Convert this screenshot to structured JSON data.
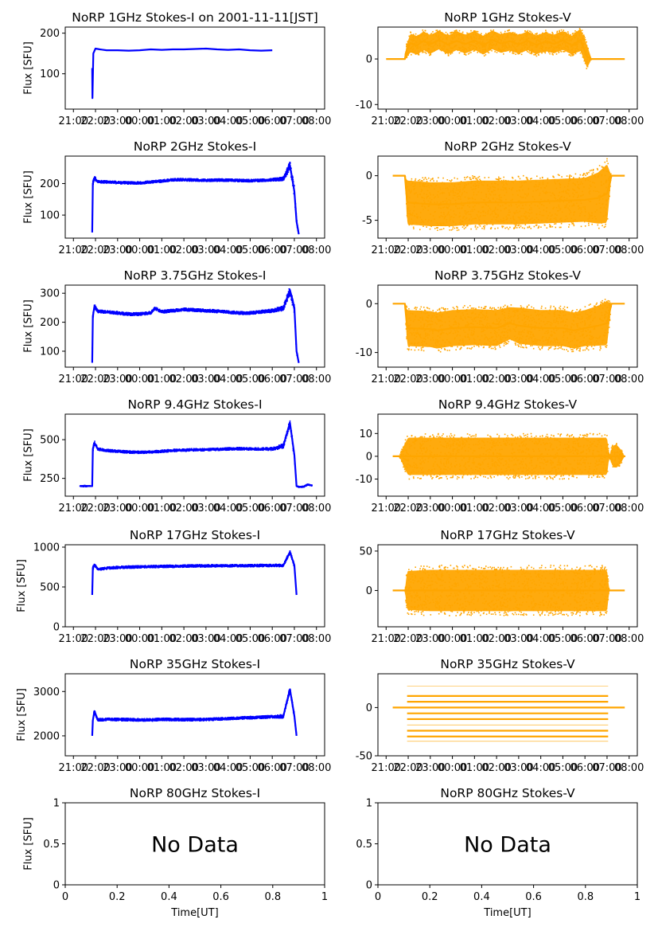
{
  "figure": {
    "xtick_labels": [
      "21:00",
      "22:00",
      "23:00",
      "00:00",
      "01:00",
      "02:00",
      "03:00",
      "04:00",
      "05:00",
      "06:00",
      "07:00",
      "08:00"
    ],
    "ylabel": "Flux [SFU]",
    "no_data_text": "No Data",
    "colors": {
      "stokes_i": "#0000ff",
      "stokes_v": "#ffa500"
    }
  },
  "chart_data": [
    {
      "type": "scatter",
      "title": "NoRP 1GHz Stokes-I on 2001-11-11[JST]",
      "ylabel": "Flux [SFU]",
      "yticks": [
        100,
        200
      ],
      "ylim": [
        13,
        215
      ],
      "series": [
        {
          "name": "Stokes-I",
          "color": "#0000ff",
          "x": [
            21.85,
            21.86,
            21.9,
            22.0,
            22.2,
            22.5,
            23.0,
            23.5,
            24.0,
            24.5,
            25.0,
            25.5,
            26.0,
            26.5,
            27.0,
            27.5,
            28.0,
            28.5,
            29.0,
            29.5,
            30.0
          ],
          "y": [
            114,
            40,
            150,
            162,
            160,
            158,
            158,
            157,
            158,
            160,
            159,
            160,
            160,
            161,
            162,
            160,
            159,
            160,
            158,
            157,
            158
          ]
        }
      ]
    },
    {
      "type": "scatter",
      "title": "NoRP 1GHz Stokes-V",
      "ylabel": "",
      "yticks": [
        0,
        -10
      ],
      "ylim": [
        -11,
        7
      ],
      "series": [
        {
          "name": "Stokes-V",
          "color": "#ffa500",
          "x": [
            21.0,
            21.85,
            21.9,
            22.1,
            22.4,
            22.7,
            23.0,
            23.4,
            23.8,
            24.2,
            24.6,
            25.0,
            25.4,
            25.8,
            26.2,
            26.6,
            27.0,
            27.4,
            27.8,
            28.2,
            28.6,
            29.0,
            29.4,
            29.8,
            30.1,
            30.3,
            31.8
          ],
          "y": [
            0,
            0,
            1.5,
            3.5,
            3.0,
            4.0,
            3.2,
            4.2,
            3.1,
            4.0,
            3.3,
            4.1,
            3.0,
            4.2,
            3.4,
            3.9,
            3.2,
            4.0,
            3.1,
            3.8,
            3.3,
            4.1,
            3.0,
            4.2,
            0.5,
            0,
            0
          ],
          "spread": [
            0,
            0,
            1.5,
            2.5,
            2.5,
            2.5,
            2.5,
            2.5,
            2.5,
            2.5,
            2.5,
            2.5,
            2.5,
            2.5,
            2.5,
            2.5,
            2.5,
            2.5,
            2.5,
            2.5,
            2.5,
            2.5,
            2.5,
            3.0,
            3.0,
            0,
            0
          ]
        }
      ]
    },
    {
      "type": "scatter",
      "title": "NoRP 2GHz Stokes-I",
      "ylabel": "Flux [SFU]",
      "yticks": [
        100,
        200
      ],
      "ylim": [
        27,
        287
      ],
      "series": [
        {
          "name": "Stokes-I",
          "color": "#0000ff",
          "x": [
            21.85,
            21.88,
            21.95,
            22.1,
            22.5,
            23.0,
            23.5,
            24.0,
            24.5,
            25.0,
            25.5,
            26.0,
            26.5,
            27.0,
            27.5,
            28.0,
            28.5,
            29.0,
            29.5,
            30.0,
            30.5,
            30.8,
            31.0,
            31.1,
            31.2
          ],
          "y": [
            45,
            200,
            218,
            206,
            205,
            203,
            202,
            202,
            205,
            208,
            212,
            212,
            211,
            210,
            211,
            211,
            210,
            209,
            210,
            212,
            215,
            258,
            175,
            80,
            40
          ],
          "spread": [
            0,
            10,
            8,
            4,
            4,
            4,
            4,
            4,
            4,
            4,
            4,
            4,
            4,
            4,
            4,
            4,
            4,
            4,
            4,
            4,
            6,
            15,
            20,
            10,
            0
          ]
        }
      ]
    },
    {
      "type": "scatter",
      "title": "NoRP 2GHz Stokes-V",
      "ylabel": "",
      "yticks": [
        0,
        -5
      ],
      "ylim": [
        -7,
        2.2
      ],
      "series": [
        {
          "name": "Stokes-V",
          "color": "#ffa500",
          "x": [
            21.3,
            21.85,
            21.95,
            23.0,
            24.0,
            25.0,
            26.0,
            27.0,
            28.0,
            29.0,
            30.0,
            30.6,
            31.0,
            31.2,
            31.8
          ],
          "y": [
            0,
            0,
            -3.0,
            -3.2,
            -3.2,
            -3.0,
            -3.0,
            -3.0,
            -2.9,
            -2.8,
            -2.7,
            -2.5,
            -2.0,
            0,
            0
          ],
          "spread": [
            0,
            0,
            3.0,
            3.0,
            3.0,
            3.0,
            3.0,
            3.0,
            3.0,
            3.0,
            3.0,
            3.5,
            4.0,
            0,
            0
          ]
        }
      ]
    },
    {
      "type": "scatter",
      "title": "NoRP 3.75GHz Stokes-I",
      "ylabel": "Flux [SFU]",
      "yticks": [
        100,
        200,
        300
      ],
      "ylim": [
        45,
        328
      ],
      "series": [
        {
          "name": "Stokes-I",
          "color": "#0000ff",
          "x": [
            21.85,
            21.88,
            21.95,
            22.1,
            22.5,
            23.0,
            23.5,
            24.0,
            24.5,
            24.7,
            25.0,
            25.5,
            26.0,
            26.5,
            27.0,
            27.5,
            28.0,
            28.5,
            29.0,
            29.5,
            30.0,
            30.5,
            30.8,
            31.0,
            31.1,
            31.2
          ],
          "y": [
            60,
            220,
            255,
            238,
            235,
            232,
            228,
            228,
            232,
            248,
            236,
            240,
            244,
            242,
            240,
            238,
            235,
            232,
            232,
            236,
            240,
            248,
            310,
            250,
            100,
            60
          ],
          "spread": [
            0,
            10,
            8,
            5,
            5,
            5,
            5,
            5,
            5,
            5,
            5,
            5,
            5,
            5,
            5,
            5,
            5,
            5,
            5,
            5,
            6,
            8,
            15,
            20,
            10,
            0
          ]
        }
      ]
    },
    {
      "type": "scatter",
      "title": "NoRP 3.75GHz Stokes-V",
      "ylabel": "",
      "yticks": [
        0,
        -10
      ],
      "ylim": [
        -13,
        3.8
      ],
      "series": [
        {
          "name": "Stokes-V",
          "color": "#ffa500",
          "x": [
            21.3,
            21.85,
            21.95,
            23.0,
            23.3,
            24.0,
            25.0,
            26.0,
            26.6,
            27.0,
            28.0,
            29.0,
            29.5,
            30.0,
            30.6,
            31.0,
            31.2,
            31.8
          ],
          "y": [
            0,
            0,
            -5.0,
            -5.2,
            -5.5,
            -5.0,
            -4.8,
            -5.0,
            -4.0,
            -4.5,
            -5.0,
            -5.0,
            -5.5,
            -5.0,
            -4.5,
            -4.0,
            0,
            0
          ],
          "spread": [
            0,
            0,
            4.5,
            4.5,
            4.5,
            4.5,
            4.5,
            4.5,
            4.0,
            4.5,
            4.5,
            4.5,
            4.5,
            4.5,
            5.0,
            5.5,
            0,
            0
          ]
        }
      ]
    },
    {
      "type": "scatter",
      "title": "NoRP 9.4GHz Stokes-I",
      "ylabel": "Flux [SFU]",
      "yticks": [
        250,
        500
      ],
      "ylim": [
        135,
        665
      ],
      "series": [
        {
          "name": "Stokes-I",
          "color": "#0000ff",
          "x": [
            21.3,
            21.5,
            21.6,
            21.85,
            21.88,
            21.95,
            22.1,
            22.5,
            23.0,
            23.5,
            24.0,
            24.5,
            25.0,
            25.5,
            26.0,
            26.5,
            27.0,
            27.5,
            28.0,
            28.5,
            29.0,
            29.5,
            30.0,
            30.5,
            30.8,
            31.0,
            31.1,
            31.2,
            31.4,
            31.6,
            31.8
          ],
          "y": [
            200,
            200,
            200,
            200,
            440,
            480,
            440,
            430,
            425,
            420,
            418,
            420,
            425,
            430,
            432,
            435,
            435,
            438,
            440,
            442,
            440,
            440,
            440,
            460,
            610,
            400,
            200,
            195,
            195,
            210,
            205
          ],
          "spread": [
            4,
            4,
            4,
            0,
            20,
            15,
            8,
            8,
            8,
            8,
            8,
            8,
            8,
            8,
            8,
            8,
            8,
            8,
            8,
            8,
            8,
            8,
            10,
            15,
            20,
            30,
            0,
            4,
            4,
            4,
            4
          ]
        }
      ]
    },
    {
      "type": "scatter",
      "title": "NoRP 9.4GHz Stokes-V",
      "ylabel": "",
      "yticks": [
        10,
        0,
        -10
      ],
      "ylim": [
        -17.5,
        18.5
      ],
      "series": [
        {
          "name": "Stokes-V",
          "color": "#ffa500",
          "x": [
            21.3,
            21.6,
            21.85,
            22.0,
            23.0,
            24.0,
            25.0,
            26.0,
            27.0,
            28.0,
            29.0,
            30.0,
            30.5,
            31.0,
            31.1,
            31.2,
            31.3,
            31.45,
            31.6,
            31.8
          ],
          "y": [
            0,
            0,
            0,
            0,
            0,
            0,
            0,
            0,
            0,
            0,
            0,
            0,
            0,
            0,
            0,
            0,
            0,
            0,
            0,
            0
          ],
          "spread": [
            0,
            0,
            7,
            10,
            10,
            10,
            10,
            10,
            10,
            10,
            10,
            10,
            10,
            10,
            0,
            4,
            6,
            6,
            4,
            0
          ]
        }
      ]
    },
    {
      "type": "scatter",
      "title": "NoRP 17GHz Stokes-I",
      "ylabel": "Flux [SFU]",
      "yticks": [
        0,
        500,
        1000
      ],
      "ylim": [
        0,
        1030
      ],
      "series": [
        {
          "name": "Stokes-I",
          "color": "#0000ff",
          "x": [
            21.85,
            21.88,
            21.95,
            22.1,
            22.5,
            23.0,
            23.5,
            24.0,
            24.5,
            25.0,
            25.5,
            26.0,
            26.5,
            27.0,
            27.5,
            28.0,
            28.5,
            29.0,
            29.5,
            30.0,
            30.5,
            30.8,
            31.0,
            31.1
          ],
          "y": [
            400,
            740,
            780,
            720,
            735,
            745,
            750,
            752,
            755,
            758,
            760,
            762,
            765,
            765,
            766,
            766,
            768,
            768,
            770,
            770,
            770,
            940,
            770,
            400
          ],
          "spread": [
            0,
            30,
            20,
            15,
            15,
            15,
            15,
            15,
            15,
            15,
            15,
            15,
            15,
            15,
            15,
            15,
            15,
            15,
            15,
            15,
            15,
            20,
            30,
            0
          ]
        }
      ]
    },
    {
      "type": "scatter",
      "title": "NoRP 17GHz Stokes-V",
      "ylabel": "",
      "yticks": [
        50,
        0
      ],
      "ylim": [
        -46,
        58
      ],
      "series": [
        {
          "name": "Stokes-V",
          "color": "#ffa500",
          "x": [
            21.3,
            21.85,
            21.95,
            23.0,
            24.0,
            25.0,
            26.0,
            27.0,
            28.0,
            29.0,
            30.0,
            31.0,
            31.1,
            31.2,
            31.8
          ],
          "y": [
            0,
            0,
            0,
            0,
            0,
            0,
            0,
            0,
            0,
            0,
            0,
            0,
            0,
            0,
            0
          ],
          "spread": [
            0,
            0,
            30,
            32,
            32,
            32,
            32,
            32,
            32,
            32,
            32,
            32,
            0,
            0,
            0
          ]
        }
      ]
    },
    {
      "type": "scatter",
      "title": "NoRP 35GHz Stokes-I",
      "ylabel": "Flux [SFU]",
      "yticks": [
        2000,
        3000
      ],
      "ylim": [
        1550,
        3400
      ],
      "series": [
        {
          "name": "Stokes-I",
          "color": "#0000ff",
          "x": [
            21.85,
            21.88,
            21.95,
            22.1,
            22.5,
            23.0,
            23.5,
            24.0,
            24.5,
            25.0,
            25.5,
            26.0,
            26.5,
            27.0,
            27.5,
            28.0,
            28.5,
            29.0,
            29.5,
            30.0,
            30.5,
            30.8,
            31.0,
            31.1
          ],
          "y": [
            2000,
            2350,
            2560,
            2360,
            2370,
            2370,
            2365,
            2360,
            2360,
            2370,
            2370,
            2365,
            2365,
            2370,
            2380,
            2390,
            2400,
            2410,
            2420,
            2430,
            2440,
            3050,
            2450,
            2000
          ],
          "spread": [
            0,
            60,
            40,
            30,
            30,
            30,
            30,
            30,
            30,
            30,
            30,
            30,
            30,
            30,
            30,
            30,
            30,
            30,
            30,
            30,
            40,
            60,
            60,
            0
          ]
        }
      ]
    },
    {
      "type": "scatter",
      "title": "NoRP 35GHz Stokes-V",
      "ylabel": "",
      "yticks": [
        0,
        -50
      ],
      "ylim": [
        -50,
        35
      ],
      "series": [
        {
          "name": "Stokes-V",
          "color": "#ffa500",
          "x": [
            21.3,
            21.85,
            21.95,
            31.05,
            31.2,
            31.8
          ],
          "y": [
            0,
            0,
            0,
            0,
            0,
            0
          ],
          "levels": [
            22,
            12,
            6,
            0,
            -6,
            -12,
            -18,
            -24,
            -30,
            -35
          ]
        }
      ]
    },
    {
      "type": "scatter",
      "title": "NoRP 80GHz Stokes-I",
      "ylabel": "Flux [SFU]",
      "xlabel": "Time[UT]",
      "xticks": [
        0.0,
        0.2,
        0.4,
        0.6,
        0.8,
        1.0
      ],
      "yticks": [
        0.0,
        0.5,
        1.0
      ],
      "xlim": [
        0,
        1
      ],
      "ylim": [
        0,
        1
      ],
      "series": []
    },
    {
      "type": "scatter",
      "title": "NoRP 80GHz Stokes-V",
      "ylabel": "",
      "xlabel": "Time[UT]",
      "xticks": [
        0.0,
        0.2,
        0.4,
        0.6,
        0.8,
        1.0
      ],
      "yticks": [
        0.0,
        0.5,
        1.0
      ],
      "xlim": [
        0,
        1
      ],
      "ylim": [
        0,
        1
      ],
      "series": []
    }
  ]
}
